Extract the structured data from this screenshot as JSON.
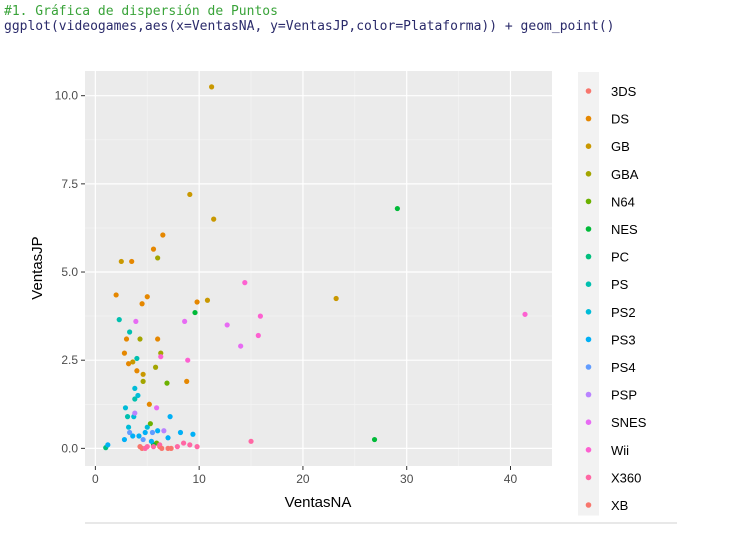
{
  "code": {
    "comment": "#1. Gráfica de dispersión de Puntos",
    "command": "ggplot(videogames,aes(x=VentasNA, y=VentasJP,color=Plataforma)) + geom_point()"
  },
  "chart_data": {
    "type": "scatter",
    "title": "",
    "xlabel": "VentasNA",
    "ylabel": "VentasJP",
    "xlim": [
      -1,
      44
    ],
    "ylim": [
      -0.5,
      10.7
    ],
    "xticks": [
      0,
      10,
      20,
      30,
      40
    ],
    "yticks": [
      0.0,
      2.5,
      5.0,
      7.5,
      10.0
    ],
    "ytick_labels": [
      "0.0",
      "2.5",
      "5.0",
      "7.5",
      "10.0"
    ],
    "grid": true,
    "legend_position": "right",
    "series": [
      {
        "name": "3DS",
        "color": "#F8766D",
        "points": [
          [
            4.5,
            0.0
          ],
          [
            6.2,
            0.05
          ],
          [
            7.0,
            0.0
          ]
        ]
      },
      {
        "name": "DS",
        "color": "#E58700",
        "points": [
          [
            2.0,
            4.35
          ],
          [
            2.8,
            2.7
          ],
          [
            3.0,
            3.1
          ],
          [
            3.2,
            2.4
          ],
          [
            3.5,
            5.3
          ],
          [
            4.0,
            2.2
          ],
          [
            4.5,
            4.1
          ],
          [
            5.0,
            4.3
          ],
          [
            5.2,
            1.25
          ],
          [
            5.6,
            5.65
          ],
          [
            6.0,
            3.1
          ],
          [
            6.5,
            6.05
          ],
          [
            8.8,
            1.9
          ],
          [
            9.8,
            4.15
          ]
        ]
      },
      {
        "name": "GB",
        "color": "#C99800",
        "points": [
          [
            2.5,
            5.3
          ],
          [
            3.6,
            2.45
          ],
          [
            4.6,
            2.1
          ],
          [
            9.1,
            7.2
          ],
          [
            11.2,
            10.25
          ],
          [
            11.4,
            6.5
          ],
          [
            10.8,
            4.2
          ],
          [
            23.2,
            4.25
          ]
        ]
      },
      {
        "name": "GBA",
        "color": "#A3A500",
        "points": [
          [
            4.3,
            3.1
          ],
          [
            5.8,
            2.3
          ],
          [
            6.0,
            5.4
          ],
          [
            6.3,
            2.7
          ],
          [
            4.6,
            1.9
          ]
        ]
      },
      {
        "name": "N64",
        "color": "#6BB100",
        "points": [
          [
            5.3,
            0.7
          ],
          [
            6.9,
            1.85
          ],
          [
            5.9,
            0.15
          ]
        ]
      },
      {
        "name": "NES",
        "color": "#00BA38",
        "points": [
          [
            29.1,
            6.8
          ],
          [
            26.9,
            0.25
          ],
          [
            9.6,
            3.85
          ],
          [
            5.6,
            0.1
          ]
        ]
      },
      {
        "name": "PC",
        "color": "#00BF7D",
        "points": [
          [
            1.0,
            0.02
          ]
        ]
      },
      {
        "name": "PS",
        "color": "#00C0AF",
        "points": [
          [
            2.3,
            3.65
          ],
          [
            3.8,
            1.4
          ],
          [
            4.0,
            2.55
          ],
          [
            3.1,
            0.9
          ],
          [
            3.3,
            3.3
          ]
        ]
      },
      {
        "name": "PS2",
        "color": "#00BCD8",
        "points": [
          [
            2.9,
            1.15
          ],
          [
            3.2,
            0.6
          ],
          [
            3.7,
            0.9
          ],
          [
            3.8,
            1.7
          ],
          [
            4.1,
            1.5
          ],
          [
            5.0,
            0.6
          ]
        ]
      },
      {
        "name": "PS3",
        "color": "#00B0F6",
        "points": [
          [
            1.2,
            0.1
          ],
          [
            2.8,
            0.25
          ],
          [
            3.6,
            0.35
          ],
          [
            4.2,
            0.35
          ],
          [
            4.8,
            0.45
          ],
          [
            5.4,
            0.2
          ],
          [
            6.0,
            0.5
          ],
          [
            7.0,
            0.3
          ],
          [
            8.2,
            0.45
          ],
          [
            9.4,
            0.4
          ],
          [
            7.2,
            0.9
          ]
        ]
      },
      {
        "name": "PS4",
        "color": "#619CFF",
        "points": [
          [
            3.3,
            0.45
          ],
          [
            4.6,
            0.25
          ],
          [
            5.5,
            0.45
          ]
        ]
      },
      {
        "name": "PSP",
        "color": "#B983FF",
        "points": [
          [
            3.8,
            1.0
          ],
          [
            6.6,
            0.5
          ]
        ]
      },
      {
        "name": "SNES",
        "color": "#E76BF3",
        "points": [
          [
            3.9,
            3.6
          ],
          [
            5.9,
            1.15
          ],
          [
            8.6,
            3.6
          ],
          [
            12.7,
            3.5
          ],
          [
            14.0,
            2.9
          ]
        ]
      },
      {
        "name": "Wii",
        "color": "#FD61D1",
        "points": [
          [
            6.3,
            2.6
          ],
          [
            8.9,
            2.5
          ],
          [
            14.4,
            4.7
          ],
          [
            15.9,
            3.75
          ],
          [
            15.7,
            3.2
          ],
          [
            41.4,
            3.8
          ]
        ]
      },
      {
        "name": "X360",
        "color": "#FF67A4",
        "points": [
          [
            4.8,
            0.0
          ],
          [
            5.6,
            0.05
          ],
          [
            6.2,
            0.1
          ],
          [
            7.9,
            0.05
          ],
          [
            9.1,
            0.1
          ],
          [
            9.8,
            0.05
          ],
          [
            15.0,
            0.2
          ],
          [
            5.0,
            0.05
          ],
          [
            8.5,
            0.15
          ]
        ]
      },
      {
        "name": "XB",
        "color": "#F8766D",
        "points": [
          [
            4.3,
            0.05
          ],
          [
            6.4,
            0.0
          ],
          [
            7.3,
            0.0
          ]
        ]
      }
    ]
  }
}
